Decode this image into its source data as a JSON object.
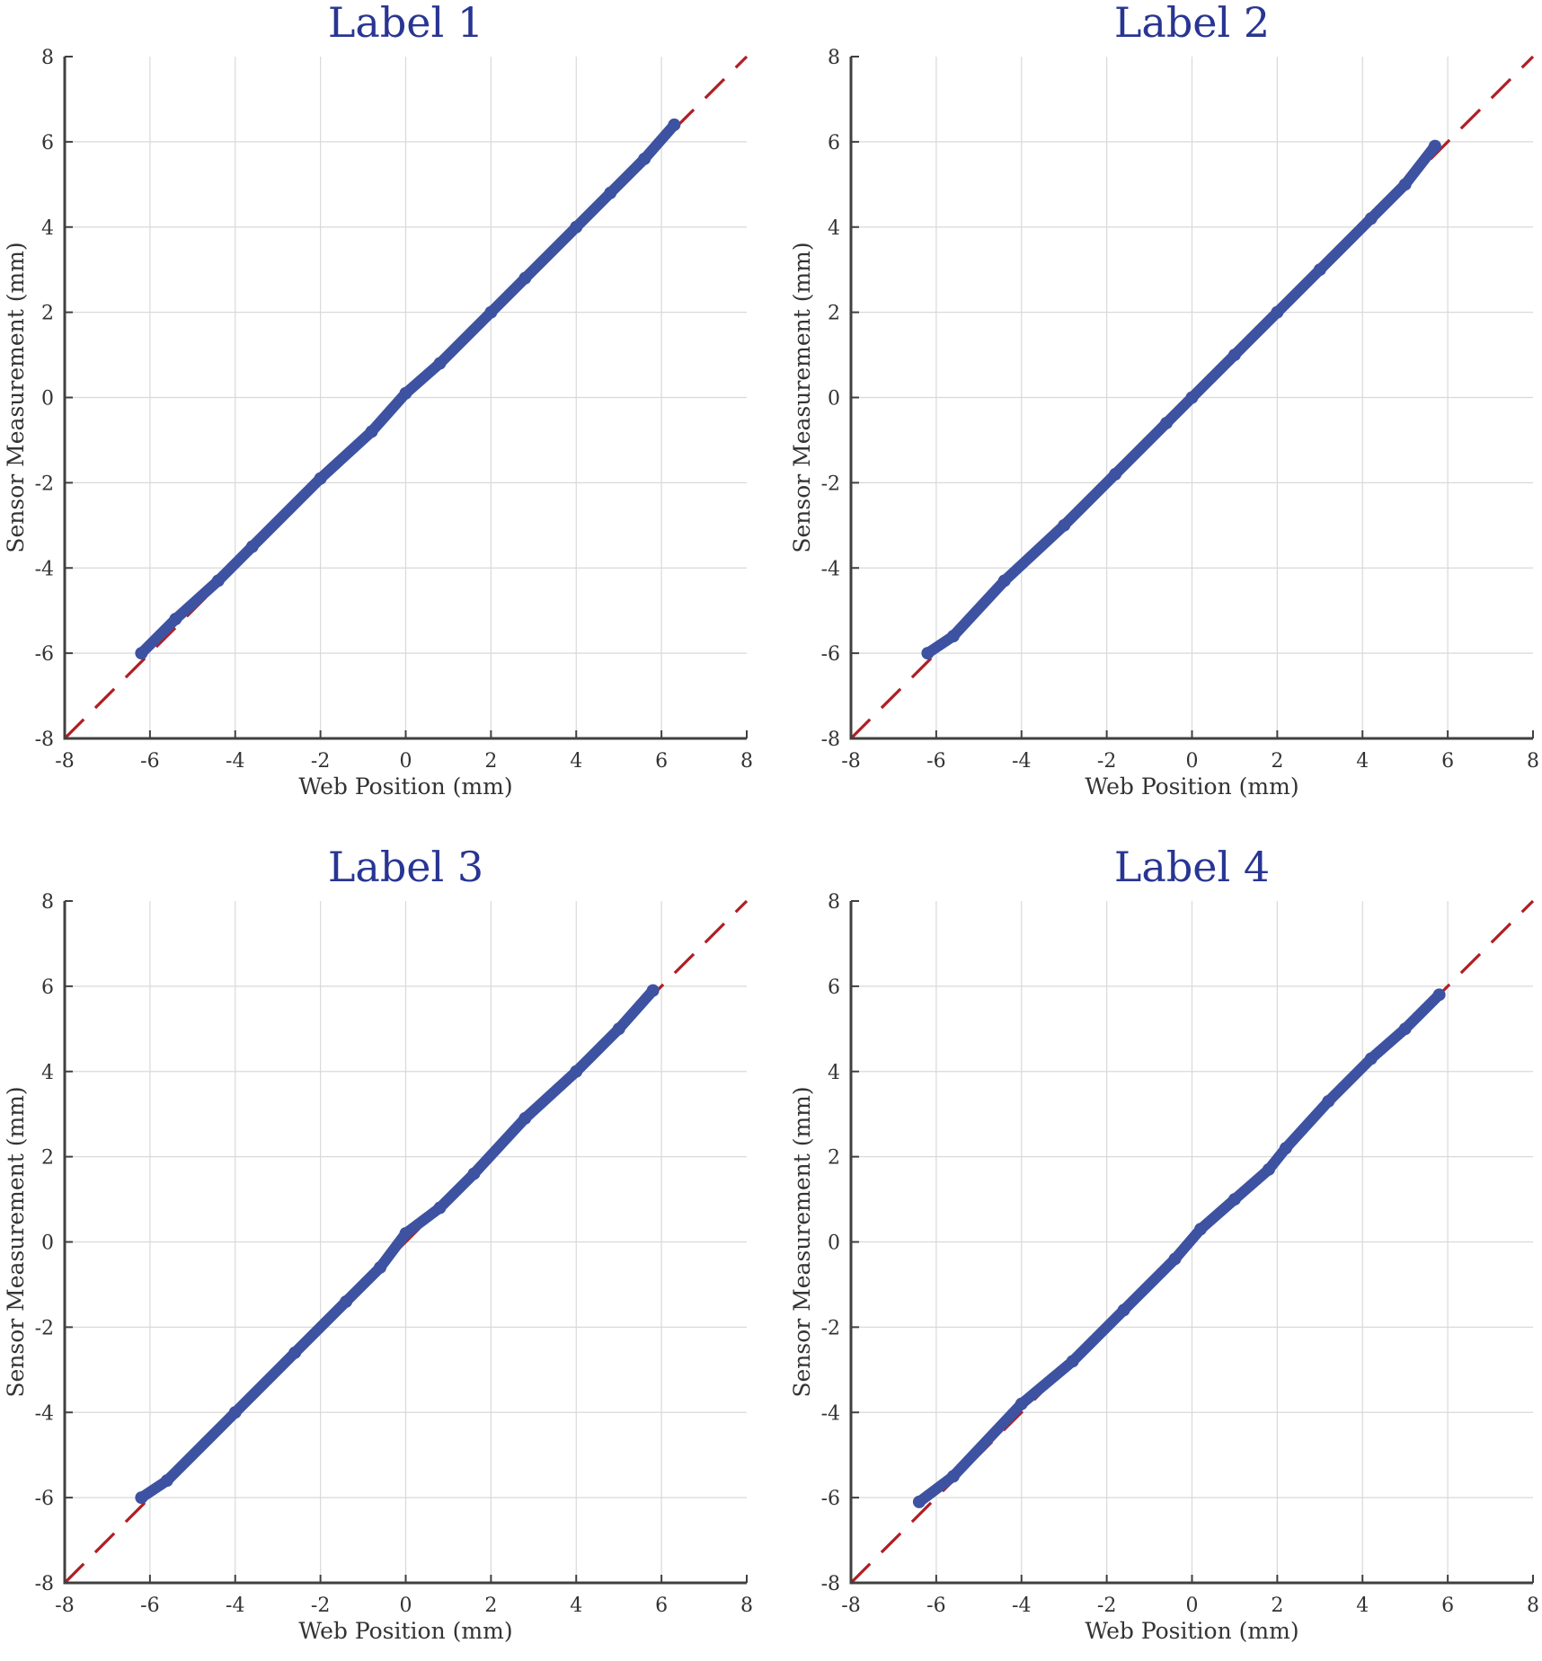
{
  "chart_data": [
    {
      "type": "scatter",
      "title": "Label 1",
      "xlabel": "Web Position (mm)",
      "ylabel": "Sensor Measurement (mm)",
      "xlim": [
        -8,
        8
      ],
      "ylim": [
        -8,
        8
      ],
      "xticks": [
        "-8",
        "-6",
        "-4",
        "-2",
        "0",
        "2",
        "4",
        "6",
        "8"
      ],
      "yticks": [
        "-8",
        "-6",
        "-4",
        "-2",
        "0",
        "2",
        "4",
        "6",
        "8"
      ],
      "grid": true,
      "reference_line": {
        "style": "dashed",
        "color": "#b01e23",
        "x": [
          -8,
          8
        ],
        "y": [
          -8,
          8
        ]
      },
      "series": [
        {
          "color": "#3d52a1",
          "x": [
            -6.2,
            -5.4,
            -4.4,
            -3.6,
            -2.0,
            -0.8,
            0.0,
            0.8,
            2.0,
            2.8,
            4.0,
            4.8,
            5.6,
            6.3
          ],
          "y": [
            -6.0,
            -5.2,
            -4.3,
            -3.5,
            -1.9,
            -0.8,
            0.1,
            0.8,
            2.0,
            2.8,
            4.0,
            4.8,
            5.6,
            6.4
          ]
        }
      ]
    },
    {
      "type": "scatter",
      "title": "Label 2",
      "xlabel": "Web Position (mm)",
      "ylabel": "Sensor Measurement (mm)",
      "xlim": [
        -8,
        8
      ],
      "ylim": [
        -8,
        8
      ],
      "xticks": [
        "-8",
        "-6",
        "-4",
        "-2",
        "0",
        "2",
        "4",
        "6",
        "8"
      ],
      "yticks": [
        "-8",
        "-6",
        "-4",
        "-2",
        "0",
        "2",
        "4",
        "6",
        "8"
      ],
      "grid": true,
      "reference_line": {
        "style": "dashed",
        "color": "#b01e23",
        "x": [
          -8,
          8
        ],
        "y": [
          -8,
          8
        ]
      },
      "series": [
        {
          "color": "#3d52a1",
          "x": [
            -6.2,
            -5.6,
            -4.4,
            -3.0,
            -1.8,
            -0.6,
            0.0,
            1.0,
            2.0,
            3.0,
            4.2,
            5.0,
            5.7
          ],
          "y": [
            -6.0,
            -5.6,
            -4.3,
            -3.0,
            -1.8,
            -0.6,
            0.0,
            1.0,
            2.0,
            3.0,
            4.2,
            5.0,
            5.9
          ]
        }
      ]
    },
    {
      "type": "scatter",
      "title": "Label 3",
      "xlabel": "Web Position (mm)",
      "ylabel": "Sensor Measurement (mm)",
      "xlim": [
        -8,
        8
      ],
      "ylim": [
        -8,
        8
      ],
      "xticks": [
        "-8",
        "-6",
        "-4",
        "-2",
        "0",
        "2",
        "4",
        "6",
        "8"
      ],
      "yticks": [
        "-8",
        "-6",
        "-4",
        "-2",
        "0",
        "2",
        "4",
        "6",
        "8"
      ],
      "grid": true,
      "reference_line": {
        "style": "dashed",
        "color": "#b01e23",
        "x": [
          -8,
          8
        ],
        "y": [
          -8,
          8
        ]
      },
      "series": [
        {
          "color": "#3d52a1",
          "x": [
            -6.2,
            -5.6,
            -4.0,
            -2.6,
            -1.4,
            -0.6,
            0.0,
            0.8,
            1.6,
            2.8,
            4.0,
            5.0,
            5.8
          ],
          "y": [
            -6.0,
            -5.6,
            -4.0,
            -2.6,
            -1.4,
            -0.6,
            0.2,
            0.8,
            1.6,
            2.9,
            4.0,
            5.0,
            5.9
          ]
        }
      ]
    },
    {
      "type": "scatter",
      "title": "Label 4",
      "xlabel": "Web Position (mm)",
      "ylabel": "Sensor Measurement (mm)",
      "xlim": [
        -8,
        8
      ],
      "ylim": [
        -8,
        8
      ],
      "xticks": [
        "-8",
        "-6",
        "-4",
        "-2",
        "0",
        "2",
        "4",
        "6",
        "8"
      ],
      "yticks": [
        "-8",
        "-6",
        "-4",
        "-2",
        "0",
        "2",
        "4",
        "6",
        "8"
      ],
      "grid": true,
      "reference_line": {
        "style": "dashed",
        "color": "#b01e23",
        "x": [
          -8,
          8
        ],
        "y": [
          -8,
          8
        ]
      },
      "series": [
        {
          "color": "#3d52a1",
          "x": [
            -6.4,
            -5.6,
            -4.0,
            -2.8,
            -1.6,
            -0.4,
            0.2,
            1.0,
            1.8,
            2.2,
            3.2,
            4.2,
            5.0,
            5.8
          ],
          "y": [
            -6.1,
            -5.5,
            -3.8,
            -2.8,
            -1.6,
            -0.4,
            0.3,
            1.0,
            1.7,
            2.2,
            3.3,
            4.3,
            5.0,
            5.8
          ]
        }
      ]
    }
  ]
}
